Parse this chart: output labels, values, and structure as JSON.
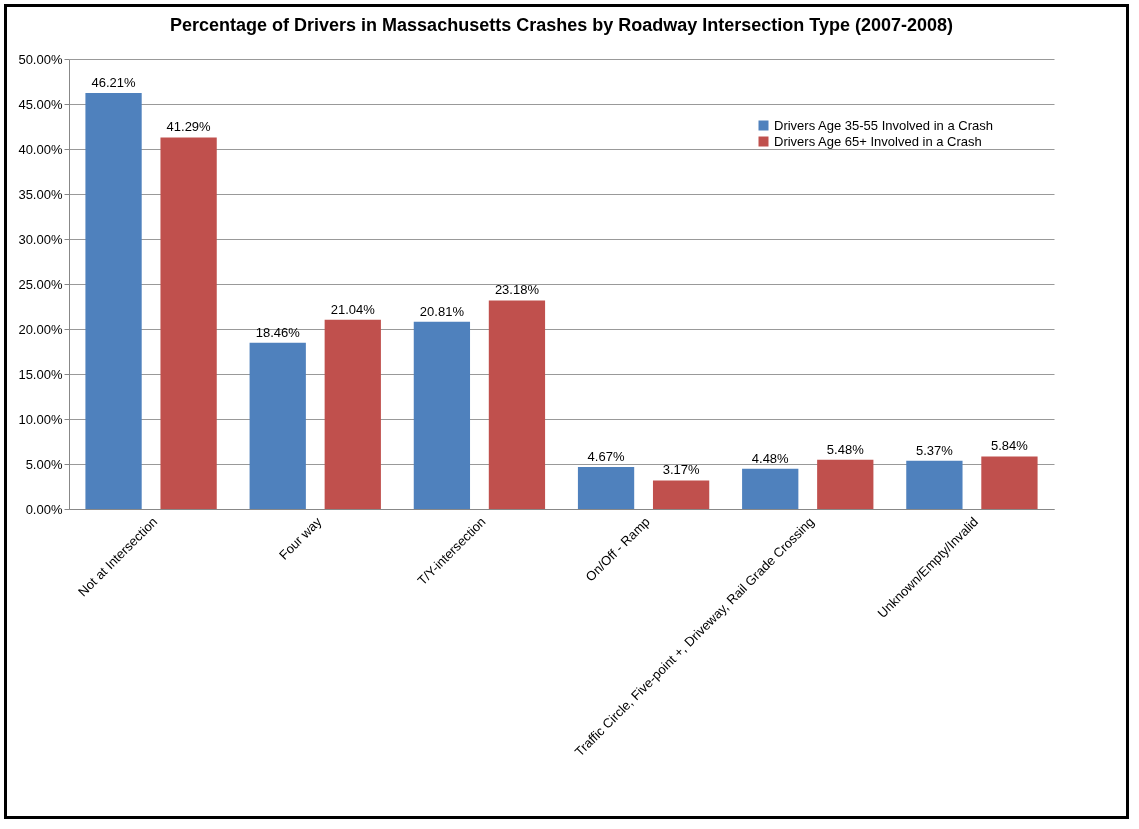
{
  "chart_data": {
    "type": "bar",
    "title": "Percentage of Drivers in Massachusetts Crashes by Roadway Intersection Type (2007-2008)",
    "categories": [
      "Not at Intersection",
      "Four way",
      "T/Y-intersection",
      "On/Off - Ramp",
      "Traffic Circle, Five-point +, Driveway, Rail Grade Crossing",
      "Unknown/Empty/Invalid"
    ],
    "series": [
      {
        "name": "Drivers Age 35-55 Involved in a Crash",
        "color": "#4f81bd",
        "values": [
          46.21,
          18.46,
          20.81,
          4.67,
          4.48,
          5.37
        ],
        "value_labels": [
          "46.21%",
          "18.46%",
          "20.81%",
          "4.67%",
          "4.48%",
          "5.37%"
        ]
      },
      {
        "name": "Drivers Age 65+ Involved in a Crash",
        "color": "#c0504d",
        "values": [
          41.29,
          21.04,
          23.18,
          3.17,
          5.48,
          5.84
        ],
        "value_labels": [
          "41.29%",
          "21.04%",
          "23.18%",
          "3.17%",
          "5.48%",
          "5.84%"
        ]
      }
    ],
    "ylim": [
      0,
      50
    ],
    "yticks": [
      {
        "value": 0,
        "label": "0.00%"
      },
      {
        "value": 5,
        "label": "5.00%"
      },
      {
        "value": 10,
        "label": "10.00%"
      },
      {
        "value": 15,
        "label": "15.00%"
      },
      {
        "value": 20,
        "label": "20.00%"
      },
      {
        "value": 25,
        "label": "25.00%"
      },
      {
        "value": 30,
        "label": "30.00%"
      },
      {
        "value": 35,
        "label": "35.00%"
      },
      {
        "value": 40,
        "label": "40.00%"
      },
      {
        "value": 45,
        "label": "45.00%"
      },
      {
        "value": 50,
        "label": "50.00%"
      }
    ],
    "grid": "y",
    "legend": "top right"
  }
}
